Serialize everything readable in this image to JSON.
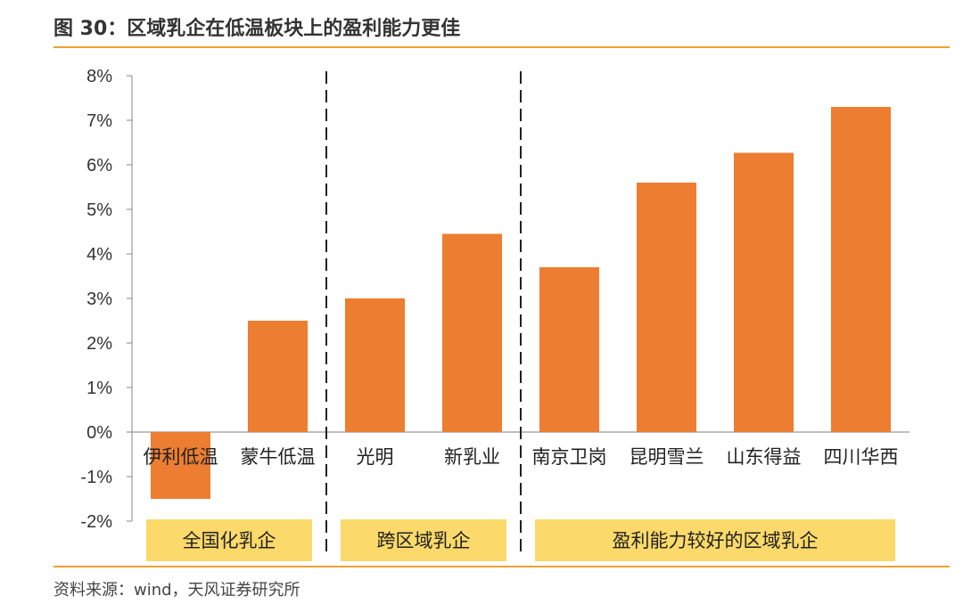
{
  "header": {
    "title": "图 30：区域乳企在低温板块上的盈利能力更佳"
  },
  "footer": {
    "source": "资料来源：wind，天风证券研究所"
  },
  "colors": {
    "bar": "#ed7d31",
    "accent_rule": "#f0a030",
    "group_box": "#fbd96a"
  },
  "chart_data": {
    "type": "bar",
    "title": "",
    "xlabel": "",
    "ylabel": "",
    "ylim": [
      -0.02,
      0.08
    ],
    "ytick_labels": [
      "8%",
      "7%",
      "6%",
      "5%",
      "4%",
      "3%",
      "2%",
      "1%",
      "0%",
      "-1%",
      "-2%"
    ],
    "categories": [
      "伊利低温",
      "蒙牛低温",
      "光明",
      "新乳业",
      "南京卫岗",
      "昆明雪兰",
      "山东得益",
      "四川华西"
    ],
    "values": [
      -0.015,
      0.025,
      0.03,
      0.0445,
      0.037,
      0.056,
      0.0627,
      0.073
    ],
    "groups": [
      {
        "label": "全国化乳企",
        "start": 0,
        "end": 1
      },
      {
        "label": "跨区域乳企",
        "start": 2,
        "end": 3
      },
      {
        "label": "盈利能力较好的区域乳企",
        "start": 4,
        "end": 7
      }
    ],
    "grid": false,
    "legend": "none"
  }
}
